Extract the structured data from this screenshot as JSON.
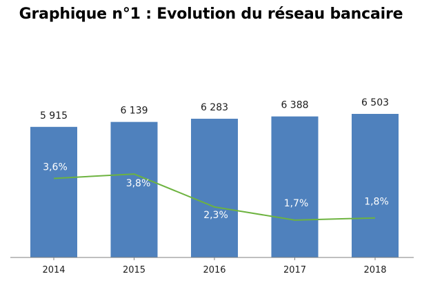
{
  "chart_data": {
    "type": "bar",
    "title": "Graphique n°1 : Evolution du réseau bancaire",
    "categories": [
      "2014",
      "2015",
      "2016",
      "2017",
      "2018"
    ],
    "bar_values": [
      5915,
      6139,
      6283,
      6388,
      6503
    ],
    "bar_labels": [
      "5 915",
      "6 139",
      "6 283",
      "6 388",
      "6 503"
    ],
    "line_values": [
      3.6,
      3.8,
      2.3,
      1.7,
      1.8
    ],
    "line_labels": [
      "3,6%",
      "3,8%",
      "2,3%",
      "1,7%",
      "1,8%"
    ],
    "bar_ylim": [
      0,
      6503
    ],
    "line_ylim": [
      0,
      5.5
    ],
    "grid": false,
    "legend": "none",
    "xlabel": "",
    "ylabel": "",
    "colors": {
      "bar": "#4F81BD",
      "line": "#6DB33F",
      "axis": "#7F7F7F"
    }
  }
}
